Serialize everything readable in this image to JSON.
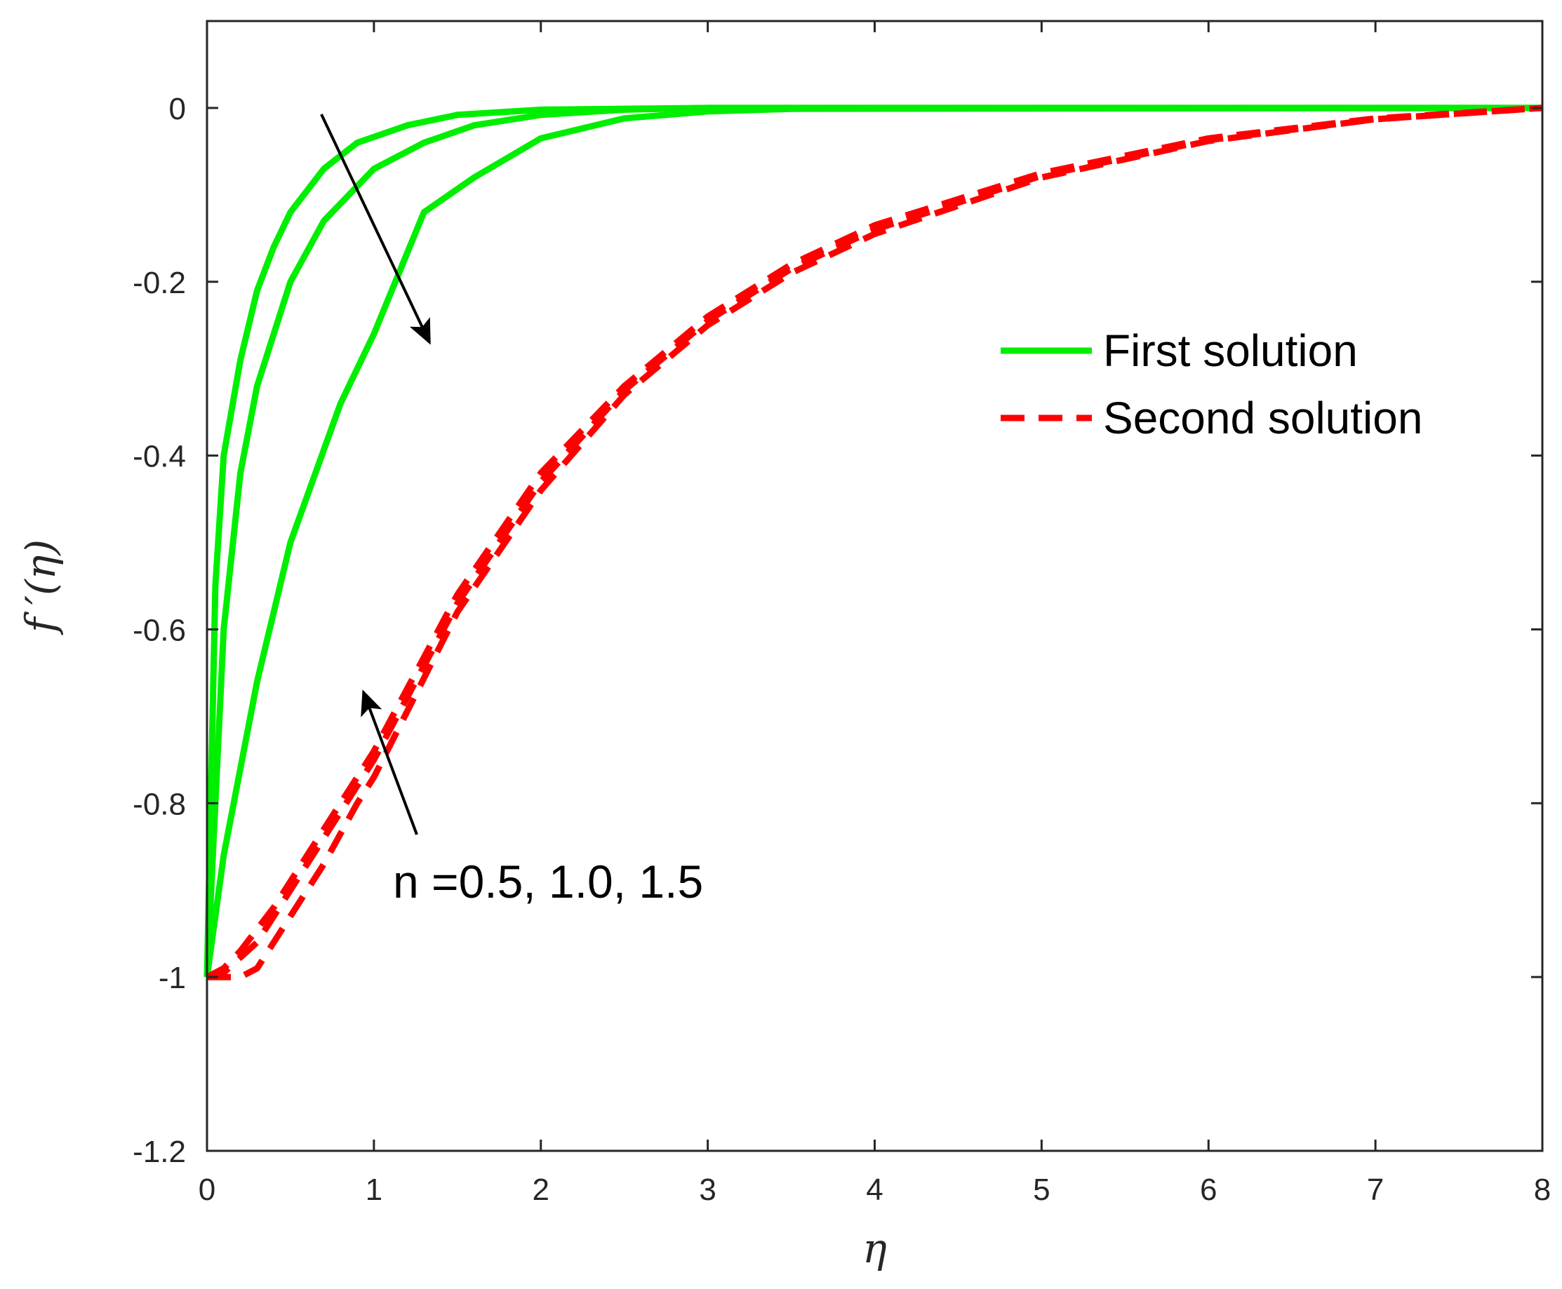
{
  "chart_data": {
    "type": "line",
    "xlabel": "η",
    "ylabel": "f ′(η)",
    "xlim": [
      0,
      8
    ],
    "ylim": [
      -1.2,
      0.1
    ],
    "x_ticks": [
      "0",
      "1",
      "2",
      "3",
      "4",
      "5",
      "6",
      "7",
      "8"
    ],
    "y_ticks": [
      "0",
      "-0.2",
      "-0.4",
      "-0.6",
      "-0.8",
      "-1",
      "-1.2"
    ],
    "grid": false,
    "legend": {
      "placement": "upper-right",
      "entries": [
        {
          "label": "First solution",
          "style": "solid",
          "color": "#00ee00"
        },
        {
          "label": "Second solution",
          "style": "dashed",
          "color": "#ff0000"
        }
      ]
    },
    "annotation": "n =0.5, 1.0, 1.5",
    "series": [
      {
        "group": "First solution",
        "style": "solid",
        "color": "#00ee00",
        "x": [
          0,
          0.05,
          0.1,
          0.2,
          0.3,
          0.4,
          0.5,
          0.7,
          0.9,
          1.2,
          1.5,
          2.0,
          3.0,
          8.0
        ],
        "y": [
          -1.0,
          -0.55,
          -0.4,
          -0.29,
          -0.21,
          -0.16,
          -0.12,
          -0.07,
          -0.04,
          -0.02,
          -0.008,
          -0.002,
          0,
          0
        ]
      },
      {
        "group": "First solution",
        "style": "solid",
        "color": "#00ee00",
        "x": [
          0,
          0.1,
          0.2,
          0.3,
          0.5,
          0.7,
          1.0,
          1.3,
          1.6,
          2.0,
          2.5,
          3.0,
          8.0
        ],
        "y": [
          -1.0,
          -0.6,
          -0.42,
          -0.32,
          -0.2,
          -0.13,
          -0.07,
          -0.04,
          -0.02,
          -0.008,
          -0.002,
          0,
          0
        ]
      },
      {
        "group": "First solution",
        "style": "solid",
        "color": "#00ee00",
        "x": [
          0,
          0.1,
          0.3,
          0.5,
          0.8,
          1.0,
          1.3,
          1.6,
          2.0,
          2.5,
          3.0,
          3.5,
          8.0
        ],
        "y": [
          -1.0,
          -0.86,
          -0.66,
          -0.5,
          -0.34,
          -0.26,
          -0.12,
          -0.08,
          -0.035,
          -0.012,
          -0.004,
          -0.001,
          0
        ]
      },
      {
        "group": "Second solution",
        "style": "dashed",
        "color": "#ff0000",
        "x": [
          0,
          0.1,
          0.2,
          0.4,
          0.6,
          0.8,
          1.0,
          1.5,
          2.0,
          2.5,
          3.0,
          3.5,
          4.0,
          5.0,
          6.0,
          7.0,
          8.0
        ],
        "y": [
          -1.0,
          -0.99,
          -0.97,
          -0.92,
          -0.86,
          -0.8,
          -0.74,
          -0.56,
          -0.42,
          -0.32,
          -0.24,
          -0.18,
          -0.135,
          -0.075,
          -0.035,
          -0.012,
          0
        ]
      },
      {
        "group": "Second solution",
        "style": "dashed",
        "color": "#ff0000",
        "x": [
          0,
          0.1,
          0.3,
          0.5,
          0.7,
          0.9,
          1.0,
          1.5,
          2.0,
          2.5,
          3.0,
          3.5,
          4.0,
          5.0,
          6.0,
          7.0,
          8.0
        ],
        "y": [
          -1.0,
          -0.995,
          -0.96,
          -0.9,
          -0.84,
          -0.78,
          -0.75,
          -0.57,
          -0.43,
          -0.325,
          -0.245,
          -0.185,
          -0.14,
          -0.078,
          -0.037,
          -0.013,
          0
        ]
      },
      {
        "group": "Second solution",
        "style": "dashed",
        "color": "#ff0000",
        "x": [
          0,
          0.1,
          0.2,
          0.3,
          0.5,
          0.7,
          0.9,
          1.0,
          1.5,
          2.0,
          2.5,
          3.0,
          3.5,
          4.0,
          5.0,
          6.0,
          7.0,
          8.0
        ],
        "y": [
          -1.0,
          -1.0,
          -1.0,
          -0.99,
          -0.93,
          -0.87,
          -0.8,
          -0.77,
          -0.58,
          -0.44,
          -0.33,
          -0.25,
          -0.19,
          -0.145,
          -0.08,
          -0.038,
          -0.013,
          0
        ]
      }
    ]
  }
}
